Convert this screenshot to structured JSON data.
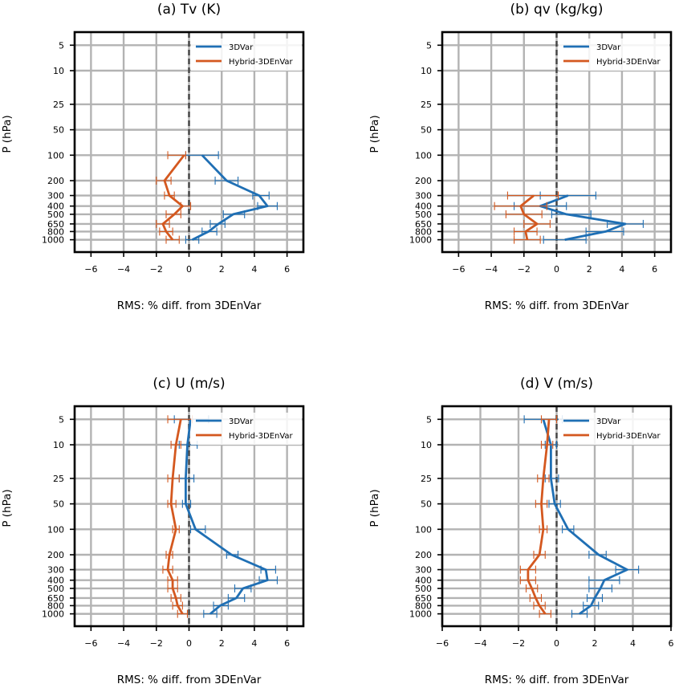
{
  "chart_data": [
    {
      "type": "line",
      "title": "(a) Tv (K)",
      "xlabel": "RMS: % diff. from 3DEnVar",
      "ylabel": "P (hPa)",
      "xlim": [
        -7,
        7
      ],
      "xticks": [
        -6,
        -4,
        -2,
        0,
        2,
        4,
        6
      ],
      "xtick_labels": [
        "−6",
        "−4",
        "−2",
        "0",
        "2",
        "4",
        "6"
      ],
      "yscale": "log-inverted",
      "ylim": [
        3.5,
        1400
      ],
      "yticks": [
        5,
        10,
        25,
        50,
        100,
        200,
        300,
        400,
        500,
        650,
        800,
        1000
      ],
      "ytick_labels": [
        "5",
        "10",
        "25",
        "50",
        "100",
        "200",
        "300",
        "400",
        "500",
        "650",
        "800",
        "1000"
      ],
      "grid": true,
      "legend": "top-right",
      "reference_line": 0,
      "series": [
        {
          "name": "3DVar",
          "color": "#1f6fb4",
          "p": [
            100,
            200,
            300,
            400,
            500,
            650,
            800,
            1000
          ],
          "x": [
            0.8,
            2.3,
            4.3,
            4.8,
            2.7,
            1.8,
            1.2,
            0.2
          ],
          "err_lo": [
            -0.2,
            1.6,
            3.9,
            4.2,
            2.1,
            1.3,
            0.8,
            -0.2
          ],
          "err_hi": [
            1.8,
            3.0,
            4.9,
            5.4,
            3.4,
            2.2,
            1.7,
            0.6
          ]
        },
        {
          "name": "Hybrid-3DEnVar",
          "color": "#d4581f",
          "p": [
            100,
            200,
            300,
            400,
            500,
            650,
            800,
            1000
          ],
          "x": [
            -0.3,
            -1.5,
            -1.2,
            -0.4,
            -0.9,
            -1.6,
            -1.4,
            -1.0
          ],
          "err_lo": [
            -1.3,
            -2.0,
            -1.5,
            -0.5,
            -1.4,
            -2.0,
            -1.8,
            -1.4
          ],
          "err_hi": [
            -0.2,
            -1.1,
            -0.9,
            0.1,
            -0.5,
            -1.2,
            -1.0,
            -0.6
          ]
        }
      ]
    },
    {
      "type": "line",
      "title": "(b) qv (kg/kg)",
      "xlabel": "RMS: % diff. from 3DEnVar",
      "ylabel": "P (hPa)",
      "xlim": [
        -7,
        7
      ],
      "xticks": [
        -6,
        -4,
        -2,
        0,
        2,
        4,
        6
      ],
      "xtick_labels": [
        "−6",
        "−4",
        "−2",
        "0",
        "2",
        "4",
        "6"
      ],
      "yscale": "log-inverted",
      "ylim": [
        3.5,
        1400
      ],
      "yticks": [
        5,
        10,
        25,
        50,
        100,
        200,
        300,
        400,
        500,
        650,
        800,
        1000
      ],
      "ytick_labels": [
        "5",
        "10",
        "25",
        "50",
        "100",
        "200",
        "300",
        "400",
        "500",
        "650",
        "800",
        "1000"
      ],
      "grid": true,
      "legend": "top-right",
      "reference_line": 0,
      "series": [
        {
          "name": "3DVar",
          "color": "#1f6fb4",
          "p": [
            300,
            400,
            500,
            650,
            800,
            1000
          ],
          "x": [
            0.7,
            -1.0,
            0.6,
            4.2,
            3.0,
            0.5
          ],
          "err_lo": [
            -1.0,
            -2.6,
            -0.3,
            3.1,
            1.8,
            -0.8
          ],
          "err_hi": [
            2.4,
            0.6,
            2.1,
            5.3,
            4.1,
            1.8
          ]
        },
        {
          "name": "Hybrid-3DEnVar",
          "color": "#d4581f",
          "p": [
            300,
            400,
            500,
            650,
            800,
            1000
          ],
          "x": [
            -1.4,
            -2.2,
            -2.0,
            -1.2,
            -1.9,
            -1.8
          ],
          "err_lo": [
            -3.0,
            -3.8,
            -3.1,
            -2.0,
            -2.6,
            -2.6
          ],
          "err_hi": [
            0.1,
            -0.6,
            -0.9,
            -0.4,
            -1.2,
            -1.0
          ]
        }
      ]
    },
    {
      "type": "line",
      "title": "(c) U (m/s)",
      "xlabel": "RMS: % diff. from 3DEnVar",
      "ylabel": "P (hPa)",
      "xlim": [
        -7,
        7
      ],
      "xticks": [
        -6,
        -4,
        -2,
        0,
        2,
        4,
        6
      ],
      "xtick_labels": [
        "−6",
        "−4",
        "−2",
        "0",
        "2",
        "4",
        "6"
      ],
      "yscale": "log-inverted",
      "ylim": [
        3.5,
        1400
      ],
      "yticks": [
        5,
        10,
        25,
        50,
        100,
        200,
        300,
        400,
        500,
        650,
        800,
        1000
      ],
      "ytick_labels": [
        "5",
        "10",
        "25",
        "50",
        "100",
        "200",
        "300",
        "400",
        "500",
        "650",
        "800",
        "1000"
      ],
      "grid": true,
      "legend": "top-right",
      "reference_line": 0,
      "series": [
        {
          "name": "3DVar",
          "color": "#1f6fb4",
          "p": [
            5,
            10,
            25,
            50,
            100,
            200,
            300,
            400,
            500,
            650,
            800,
            1000
          ],
          "x": [
            0.1,
            -0.1,
            -0.2,
            -0.2,
            0.4,
            2.6,
            4.7,
            4.8,
            3.3,
            2.9,
            1.9,
            1.3
          ],
          "err_lo": [
            -0.9,
            -0.6,
            -0.6,
            -0.4,
            0.1,
            2.3,
            4.4,
            4.3,
            2.8,
            2.4,
            1.5,
            0.9
          ],
          "err_hi": [
            1.2,
            0.5,
            0.3,
            0.1,
            1.0,
            3.0,
            5.3,
            5.4,
            3.8,
            3.4,
            2.4,
            1.7
          ]
        },
        {
          "name": "Hybrid-3DEnVar",
          "color": "#d4581f",
          "p": [
            5,
            10,
            25,
            50,
            100,
            200,
            300,
            400,
            500,
            650,
            800,
            1000
          ],
          "x": [
            -0.5,
            -0.8,
            -1.0,
            -1.1,
            -0.8,
            -1.2,
            -1.3,
            -1.0,
            -1.0,
            -0.8,
            -0.7,
            -0.4
          ],
          "err_lo": [
            -1.3,
            -1.1,
            -1.3,
            -1.3,
            -1.0,
            -1.4,
            -1.6,
            -1.3,
            -1.3,
            -1.1,
            -1.0,
            -0.7
          ],
          "err_hi": [
            0.2,
            -0.5,
            -0.6,
            -0.8,
            -0.6,
            -1.0,
            -1.0,
            -0.7,
            -0.7,
            -0.5,
            -0.4,
            -0.1
          ]
        }
      ]
    },
    {
      "type": "line",
      "title": "(d) V (m/s)",
      "xlabel": "RMS: % diff. from 3DEnVar",
      "ylabel": "P (hPa)",
      "xlim": [
        -6,
        6
      ],
      "xticks": [
        -6,
        -4,
        -2,
        0,
        2,
        4,
        6
      ],
      "xtick_labels": [
        "−6",
        "−4",
        "−2",
        "0",
        "2",
        "4",
        "6"
      ],
      "yscale": "log-inverted",
      "ylim": [
        3.5,
        1400
      ],
      "yticks": [
        5,
        10,
        25,
        50,
        100,
        200,
        300,
        400,
        500,
        650,
        800,
        1000
      ],
      "ytick_labels": [
        "5",
        "10",
        "25",
        "50",
        "100",
        "200",
        "300",
        "400",
        "500",
        "650",
        "800",
        "1000"
      ],
      "grid": true,
      "legend": "top-right",
      "reference_line": 0,
      "series": [
        {
          "name": "3DVar",
          "color": "#1f6fb4",
          "p": [
            5,
            10,
            25,
            50,
            100,
            200,
            300,
            400,
            500,
            650,
            800,
            1000
          ],
          "x": [
            -0.7,
            -0.3,
            -0.3,
            -0.1,
            0.6,
            2.2,
            3.7,
            2.5,
            2.3,
            2.0,
            1.8,
            1.2
          ],
          "err_lo": [
            -1.7,
            -0.6,
            -0.6,
            -0.4,
            0.3,
            1.7,
            3.1,
            1.7,
            1.7,
            1.6,
            1.4,
            0.8
          ],
          "err_hi": [
            0.3,
            0.0,
            0.1,
            0.2,
            0.9,
            2.6,
            4.3,
            3.3,
            2.9,
            2.4,
            2.2,
            1.6
          ]
        },
        {
          "name": "Hybrid-3DEnVar",
          "color": "#d4581f",
          "p": [
            5,
            10,
            25,
            50,
            100,
            200,
            300,
            400,
            500,
            650,
            800,
            1000
          ],
          "x": [
            -0.4,
            -0.5,
            -0.7,
            -0.8,
            -0.7,
            -0.9,
            -1.5,
            -1.5,
            -1.3,
            -1.1,
            -0.9,
            -0.6
          ],
          "err_lo": [
            -0.8,
            -0.8,
            -1.0,
            -1.1,
            -0.9,
            -1.2,
            -1.9,
            -1.9,
            -1.6,
            -1.4,
            -1.2,
            -0.9
          ],
          "err_hi": [
            0.0,
            -0.2,
            -0.4,
            -0.5,
            -0.5,
            -0.6,
            -1.1,
            -1.1,
            -1.0,
            -0.8,
            -0.6,
            -0.3
          ]
        }
      ]
    }
  ]
}
